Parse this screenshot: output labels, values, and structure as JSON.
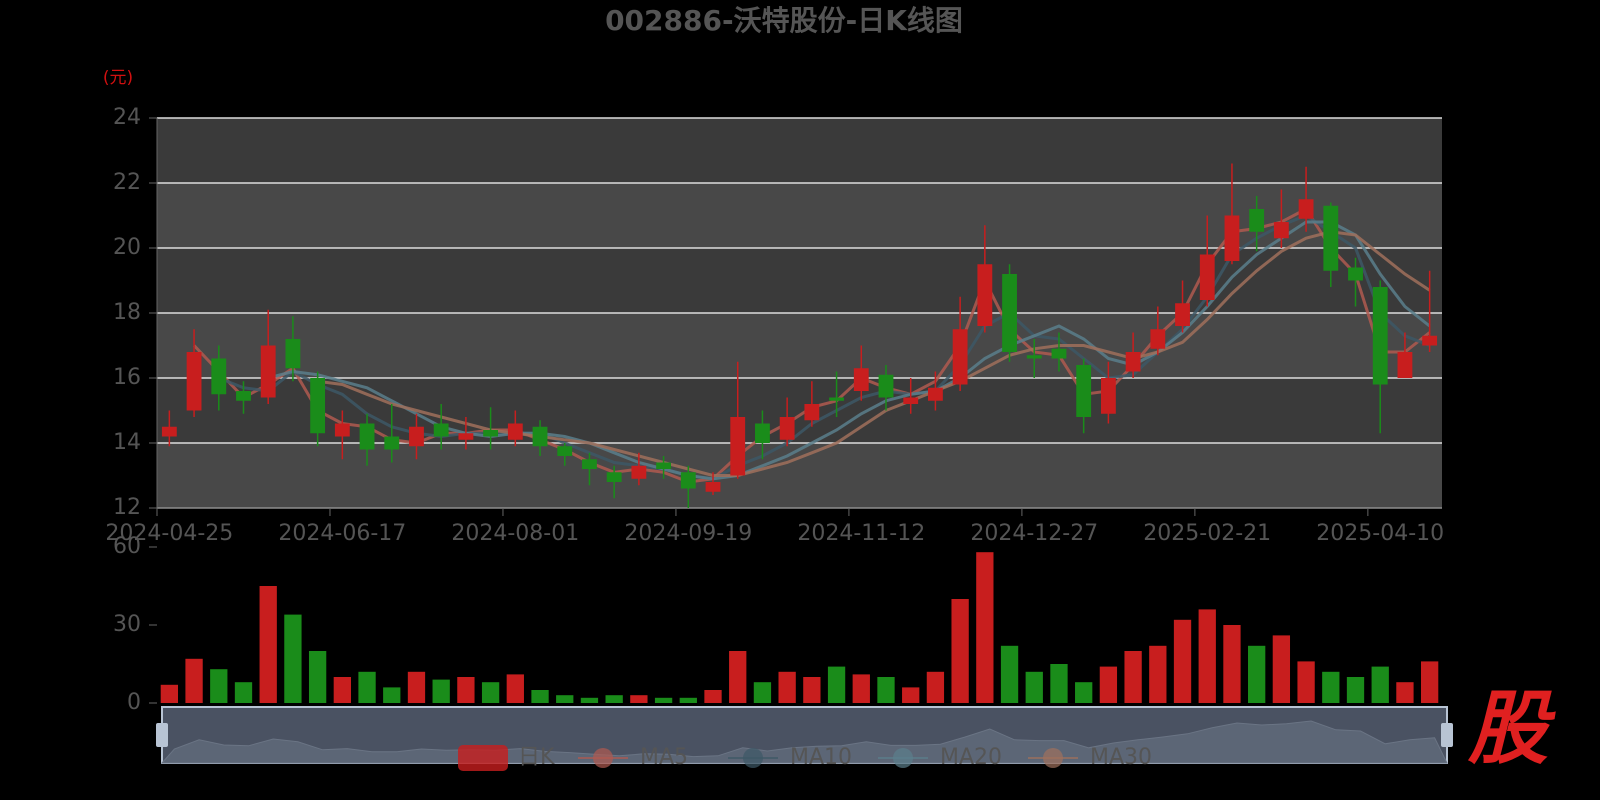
{
  "chart_data": [
    {
      "type": "candlestick",
      "title": "002886-沃特股份-日K线图",
      "y_unit": "(元)",
      "categories": [
        "2024-04-25",
        null,
        null,
        null,
        null,
        null,
        null,
        "2024-06-17",
        null,
        null,
        null,
        null,
        null,
        null,
        "2024-08-01",
        null,
        null,
        null,
        null,
        null,
        null,
        "2024-09-19",
        null,
        null,
        null,
        null,
        null,
        null,
        "2024-11-12",
        null,
        null,
        null,
        null,
        null,
        null,
        "2024-12-27",
        null,
        null,
        null,
        null,
        null,
        null,
        "2025-02-21",
        null,
        null,
        null,
        null,
        null,
        null,
        "2025-04-10",
        null,
        null
      ],
      "candles": {
        "name": "日K",
        "up_color": "#c81e1e",
        "down_color": "#1a8c1a",
        "open": [
          14.2,
          15.0,
          16.6,
          15.6,
          15.4,
          17.2,
          16.0,
          14.2,
          14.6,
          14.2,
          13.9,
          14.6,
          14.1,
          14.4,
          14.1,
          14.5,
          13.9,
          13.5,
          13.1,
          12.9,
          13.4,
          13.1,
          12.5,
          13.0,
          14.6,
          14.1,
          14.7,
          15.4,
          15.6,
          16.1,
          15.2,
          15.3,
          15.8,
          17.6,
          19.2,
          16.7,
          16.9,
          16.4,
          14.9,
          16.2,
          16.9,
          17.6,
          18.4,
          19.6,
          21.2,
          20.3,
          20.9,
          21.3,
          19.4,
          18.8,
          16.0,
          17.0
        ],
        "close": [
          14.5,
          16.8,
          15.5,
          15.3,
          17.0,
          16.3,
          14.3,
          14.6,
          13.8,
          13.8,
          14.5,
          14.2,
          14.3,
          14.2,
          14.6,
          13.9,
          13.6,
          13.2,
          12.8,
          13.3,
          13.2,
          12.6,
          12.8,
          14.8,
          14.0,
          14.8,
          15.2,
          15.3,
          16.3,
          15.4,
          15.4,
          15.7,
          17.5,
          19.5,
          16.8,
          16.6,
          16.6,
          14.8,
          16.0,
          16.8,
          17.5,
          18.3,
          19.8,
          21.0,
          20.5,
          20.8,
          21.5,
          19.3,
          19.0,
          15.8,
          16.8,
          17.3
        ],
        "low": [
          13.9,
          14.8,
          15.0,
          14.9,
          15.2,
          15.9,
          13.9,
          13.5,
          13.3,
          13.4,
          13.5,
          13.8,
          13.8,
          13.8,
          13.9,
          13.6,
          13.3,
          12.7,
          12.3,
          12.7,
          12.9,
          12.0,
          12.4,
          12.9,
          13.5,
          13.9,
          14.5,
          14.8,
          15.3,
          15.0,
          14.9,
          15.0,
          15.6,
          17.4,
          16.5,
          16.0,
          16.2,
          14.3,
          14.6,
          16.0,
          16.7,
          17.4,
          18.2,
          19.5,
          19.9,
          20.0,
          20.5,
          18.8,
          18.2,
          14.3,
          16.0,
          16.8
        ],
        "high": [
          15.0,
          17.5,
          17.0,
          15.9,
          18.1,
          17.9,
          16.2,
          15.0,
          14.9,
          15.2,
          14.9,
          15.2,
          14.8,
          15.1,
          15.0,
          14.7,
          14.0,
          13.7,
          13.3,
          13.7,
          13.6,
          13.3,
          13.1,
          16.5,
          15.0,
          15.4,
          15.9,
          16.2,
          17.0,
          16.4,
          16.0,
          16.2,
          18.5,
          20.7,
          19.5,
          17.2,
          17.4,
          16.6,
          16.5,
          17.4,
          18.2,
          19.0,
          21.0,
          22.6,
          21.6,
          21.8,
          22.5,
          21.4,
          19.7,
          19.0,
          17.4,
          19.3
        ]
      },
      "series": [
        {
          "name": "MA5",
          "color": "#b05a50",
          "values": [
            null,
            17.0,
            16.2,
            15.4,
            15.8,
            16.3,
            15.0,
            14.6,
            14.5,
            14.1,
            14.0,
            14.3,
            14.3,
            14.4,
            14.4,
            14.1,
            13.8,
            13.4,
            13.1,
            13.2,
            13.1,
            12.8,
            12.9,
            13.6,
            14.2,
            14.6,
            15.1,
            15.3,
            16.0,
            15.7,
            15.5,
            15.9,
            17.0,
            19.0,
            17.5,
            16.8,
            16.7,
            15.5,
            15.6,
            16.4,
            17.3,
            18.0,
            19.5,
            20.5,
            20.6,
            20.8,
            21.2,
            20.0,
            19.2,
            16.8,
            16.8,
            17.4
          ]
        },
        {
          "name": "MA10",
          "color": "#3d5866",
          "values": [
            null,
            null,
            16.0,
            15.7,
            15.6,
            16.2,
            15.8,
            15.5,
            14.9,
            14.5,
            14.3,
            14.2,
            14.3,
            14.3,
            14.3,
            14.3,
            14.0,
            13.7,
            13.4,
            13.3,
            13.2,
            13.0,
            12.9,
            13.3,
            13.6,
            14.0,
            14.6,
            15.0,
            15.4,
            15.6,
            15.5,
            15.6,
            16.4,
            17.6,
            18.0,
            17.3,
            17.2,
            16.6,
            16.0,
            16.1,
            16.8,
            17.5,
            18.5,
            19.8,
            20.3,
            20.7,
            21.0,
            20.5,
            20.0,
            18.0,
            17.3,
            17.0
          ]
        },
        {
          "name": "MA20",
          "color": "#5b7f8c",
          "values": [
            null,
            null,
            null,
            null,
            16.0,
            16.2,
            16.1,
            15.9,
            15.7,
            15.3,
            14.9,
            14.5,
            14.3,
            14.2,
            14.3,
            14.3,
            14.2,
            14.0,
            13.7,
            13.4,
            13.2,
            13.0,
            12.9,
            13.0,
            13.3,
            13.6,
            14.0,
            14.4,
            14.9,
            15.3,
            15.5,
            15.6,
            16.0,
            16.6,
            17.0,
            17.3,
            17.6,
            17.2,
            16.6,
            16.4,
            16.8,
            17.4,
            18.2,
            19.1,
            19.8,
            20.3,
            20.8,
            20.8,
            20.4,
            19.2,
            18.2,
            17.6
          ]
        },
        {
          "name": "MA30",
          "color": "#a0705c",
          "values": [
            null,
            null,
            null,
            null,
            null,
            null,
            15.9,
            15.8,
            15.5,
            15.2,
            15.0,
            14.8,
            14.6,
            14.4,
            14.3,
            14.2,
            14.1,
            14.0,
            13.8,
            13.6,
            13.4,
            13.2,
            13.0,
            13.0,
            13.2,
            13.4,
            13.7,
            14.0,
            14.5,
            15.0,
            15.3,
            15.6,
            15.9,
            16.3,
            16.7,
            16.9,
            17.0,
            17.0,
            16.8,
            16.6,
            16.8,
            17.1,
            17.8,
            18.6,
            19.3,
            19.9,
            20.3,
            20.5,
            20.4,
            19.8,
            19.2,
            18.7
          ]
        }
      ],
      "ylim": [
        12,
        24
      ],
      "yticks": [
        12,
        14,
        16,
        18,
        20,
        22,
        24
      ],
      "grid": true,
      "legend_position": "bottom"
    },
    {
      "type": "bar",
      "values": [
        7,
        17,
        13,
        8,
        45,
        34,
        20,
        10,
        12,
        6,
        12,
        9,
        10,
        8,
        11,
        5,
        3,
        2,
        3,
        3,
        2,
        2,
        5,
        20,
        8,
        12,
        10,
        14,
        11,
        10,
        6,
        12,
        40,
        58,
        22,
        12,
        15,
        8,
        14,
        20,
        22,
        32,
        36,
        30,
        22,
        26,
        16,
        12,
        10,
        14,
        8,
        16
      ],
      "ylim": [
        0,
        60
      ],
      "yticks": [
        0,
        30,
        60
      ]
    }
  ],
  "watermark": "股"
}
